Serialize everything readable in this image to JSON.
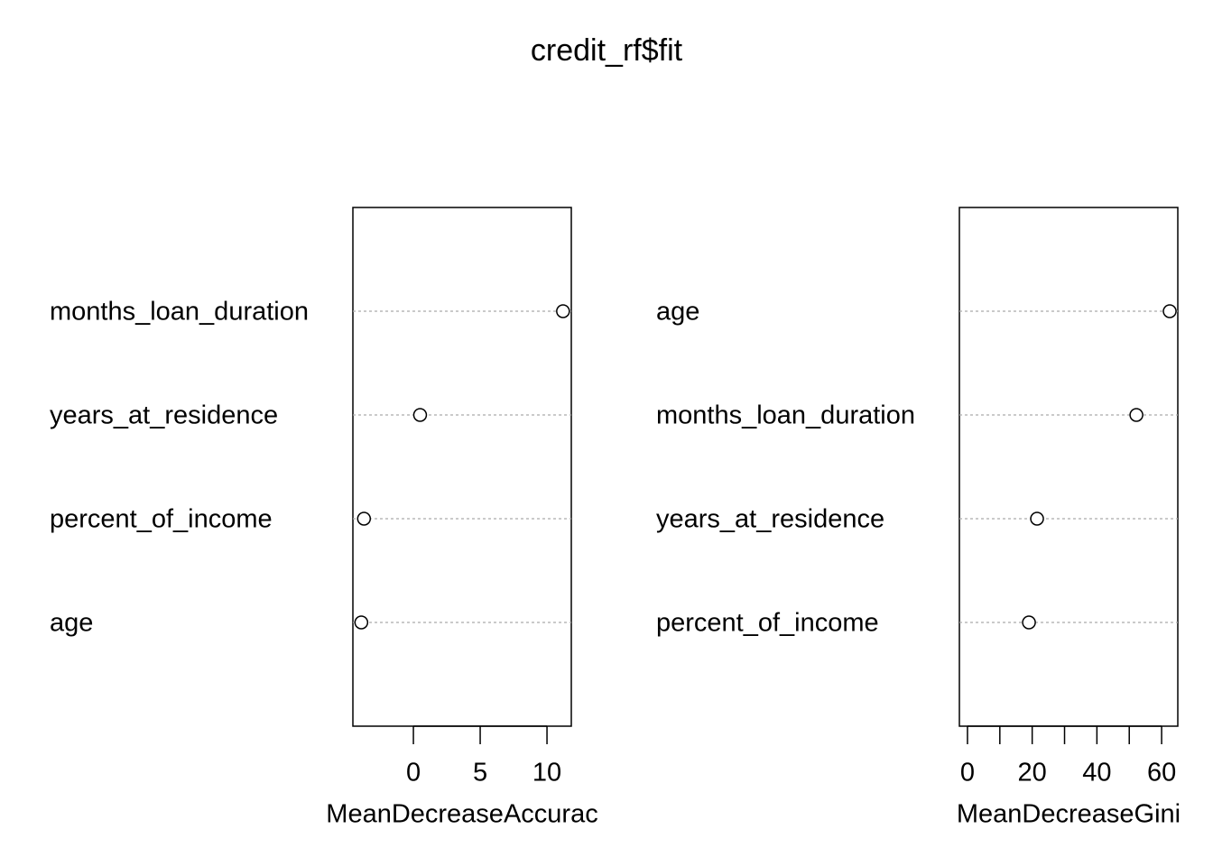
{
  "title": "credit_rf$fit",
  "chart_data": [
    {
      "type": "dot",
      "x_label": "MeanDecreaseAccurac",
      "categories": [
        "months_loan_duration",
        "years_at_residence",
        "percent_of_income",
        "age"
      ],
      "values": [
        11.2,
        0.5,
        -3.7,
        -3.9
      ],
      "xlim": [
        -4.53,
        11.82
      ],
      "xticks": [
        0,
        5,
        10
      ],
      "grid": true
    },
    {
      "type": "dot",
      "x_label": "MeanDecreaseGini",
      "categories": [
        "age",
        "months_loan_duration",
        "years_at_residence",
        "percent_of_income"
      ],
      "values": [
        62.5,
        52.2,
        21.5,
        19.0
      ],
      "xlim": [
        -2.5,
        65.0
      ],
      "xticks": [
        0,
        20,
        40,
        60
      ],
      "xminor_ticks": [
        10,
        30,
        50
      ],
      "grid": true
    }
  ]
}
